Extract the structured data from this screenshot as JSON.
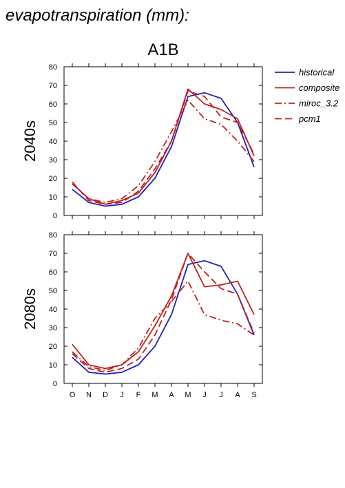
{
  "chart_data": {
    "type": "line",
    "title": "evapotranspiration (mm):",
    "subtitle": "A1B",
    "xlabel": "",
    "ylabel": "",
    "categories": [
      "O",
      "N",
      "D",
      "J",
      "F",
      "M",
      "A",
      "M",
      "J",
      "J",
      "A",
      "S"
    ],
    "ylim": [
      0,
      80
    ],
    "yticks": [
      0,
      10,
      20,
      30,
      40,
      50,
      60,
      70,
      80
    ],
    "grid": false,
    "legend_position": "right",
    "legend": [
      {
        "name": "historical",
        "color": "#1f1fbf",
        "dash": "solid"
      },
      {
        "name": "composite",
        "color": "#bf1f1f",
        "dash": "solid"
      },
      {
        "name": "miroc_3.2",
        "color": "#bf1f1f",
        "dash": "dashdot"
      },
      {
        "name": "pcm1",
        "color": "#bf1f1f",
        "dash": "dashed"
      }
    ],
    "panels": [
      {
        "label": "2040s",
        "series": [
          {
            "name": "historical",
            "values": [
              14,
              7,
              5,
              6,
              10,
              20,
              37,
              64,
              66,
              63,
              50,
              26
            ]
          },
          {
            "name": "composite",
            "values": [
              17,
              9,
              6,
              8,
              12,
              23,
              40,
              68,
              60,
              57,
              52,
              32
            ]
          },
          {
            "name": "miroc_3.2",
            "values": [
              17,
              9,
              7,
              9,
              16,
              29,
              45,
              62,
              52,
              49,
              40,
              29
            ]
          },
          {
            "name": "pcm1",
            "values": [
              18,
              8,
              6,
              7,
              13,
              25,
              40,
              67,
              64,
              53,
              50,
              33
            ]
          }
        ]
      },
      {
        "label": "2080s",
        "series": [
          {
            "name": "historical",
            "values": [
              14,
              6,
              5,
              6,
              10,
              20,
              37,
              64,
              66,
              63,
              48,
              26
            ]
          },
          {
            "name": "composite",
            "values": [
              21,
              10,
              8,
              10,
              17,
              31,
              47,
              70,
              52,
              53,
              55,
              37
            ]
          },
          {
            "name": "miroc_3.2",
            "values": [
              17,
              9,
              7,
              10,
              19,
              35,
              44,
              55,
              37,
              34,
              32,
              26
            ]
          },
          {
            "name": "pcm1",
            "values": [
              16,
              8,
              6,
              8,
              13,
              26,
              45,
              70,
              60,
              51,
              48,
              27
            ]
          }
        ]
      }
    ]
  }
}
